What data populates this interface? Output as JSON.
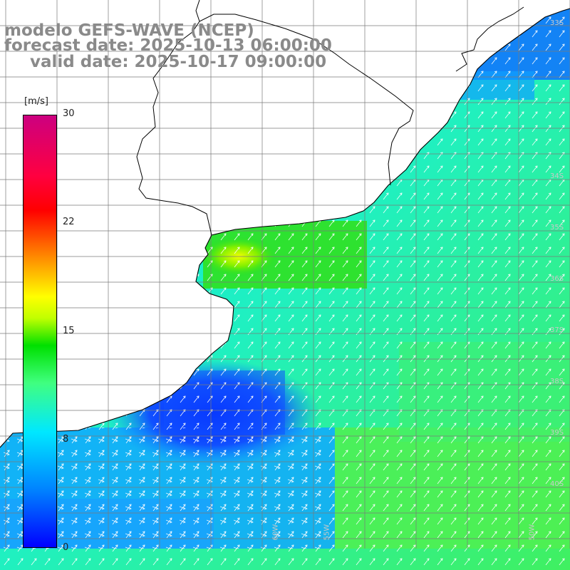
{
  "title": {
    "model": "modelo GEFS-WAVE (NCEP)",
    "forecast": "forecast date: 2025-10-13 06:00:00",
    "valid": "valid date: 2025-10-17 09:00:00"
  },
  "colorbar": {
    "unit": "[m/s]",
    "ticks": [
      "30",
      "22",
      "15",
      "8",
      "0"
    ]
  },
  "latitude_labels": [
    "33S",
    "34S",
    "35S",
    "36S",
    "37S",
    "38S",
    "39S",
    "40S"
  ],
  "longitude_labels": [
    "60W",
    "55W",
    "50W"
  ],
  "colors": {
    "title": "#8a8a8a",
    "land": "#ffffff",
    "grid": "#7a7a7a",
    "coastline": "#000000",
    "arrow": "#ffffff"
  },
  "icon_names": [
    "wind-arrow-icon"
  ]
}
